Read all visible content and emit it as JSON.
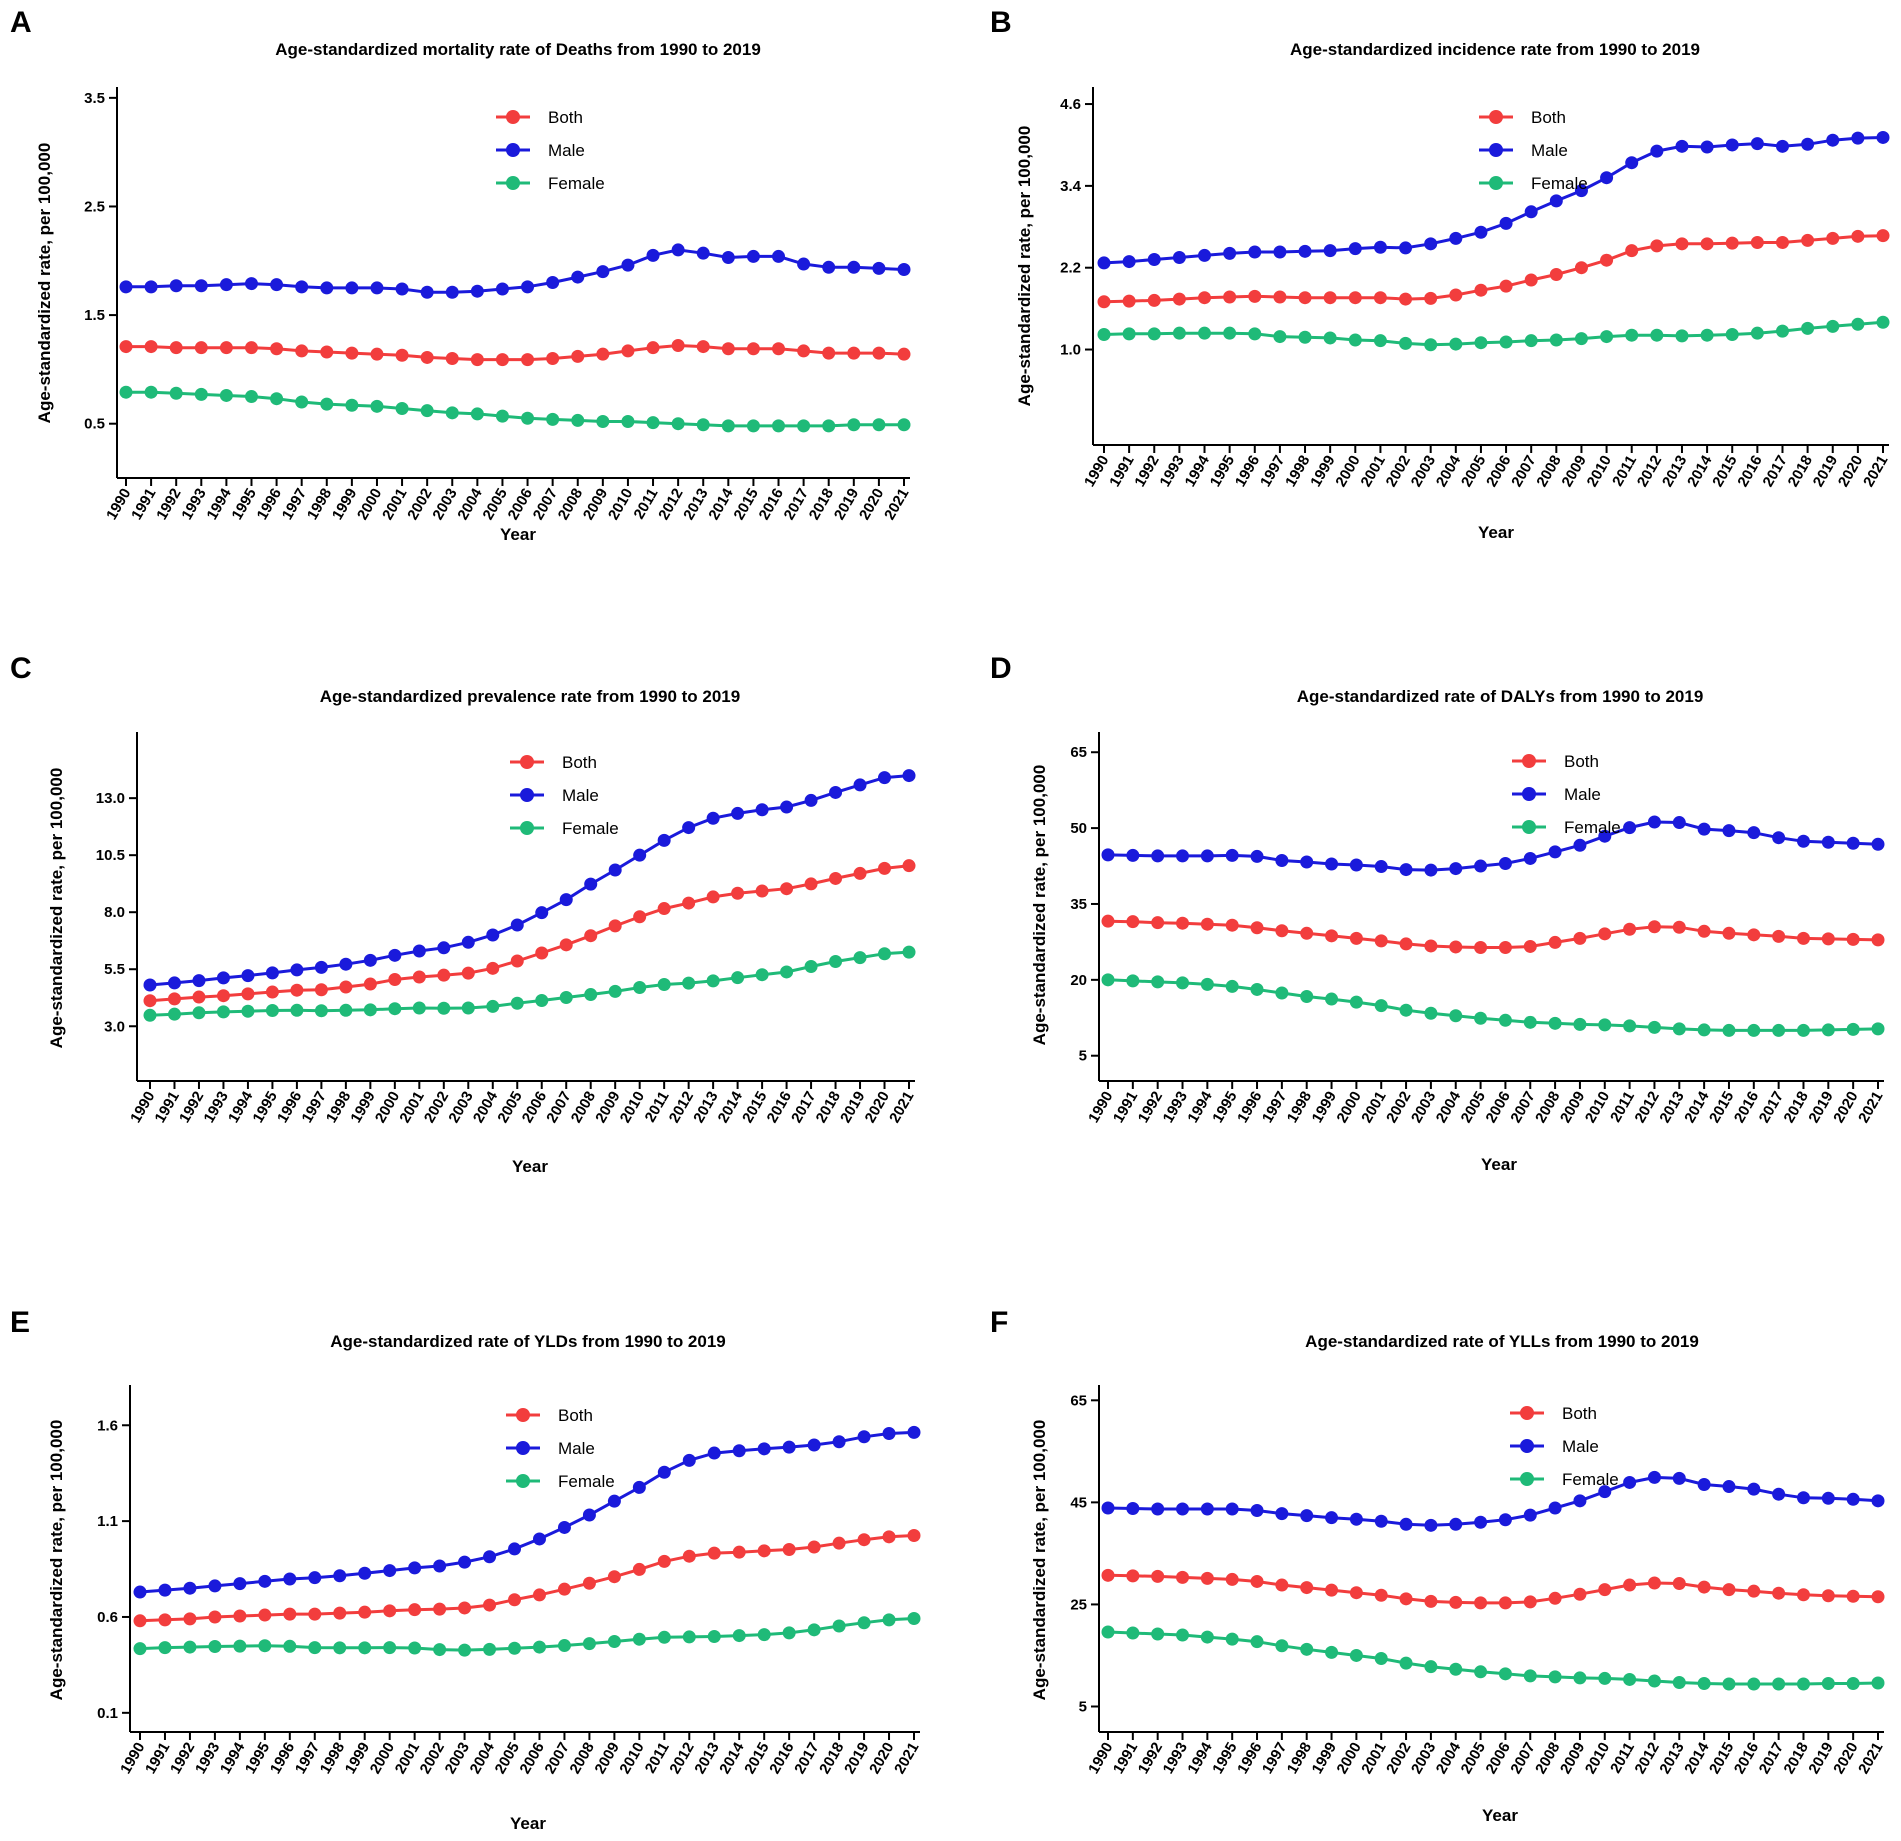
{
  "figure": {
    "years": [
      "1990",
      "1991",
      "1992",
      "1993",
      "1994",
      "1995",
      "1996",
      "1997",
      "1998",
      "1999",
      "2000",
      "2001",
      "2002",
      "2003",
      "2004",
      "2005",
      "2006",
      "2007",
      "2008",
      "2009",
      "2010",
      "2011",
      "2012",
      "2013",
      "2014",
      "2015",
      "2016",
      "2017",
      "2018",
      "2019",
      "2020",
      "2021"
    ]
  },
  "colors": {
    "Both": "#f23d3d",
    "Male": "#1a1adb",
    "Female": "#1fba78"
  },
  "chart_data": [
    {
      "panel": "A",
      "type": "line",
      "title": "Age-standardized mortality rate of Deaths from 1990 to 2019",
      "xlabel": "Year",
      "ylabel": "Age-standardized rate, per 100,000",
      "ylim": [
        0.0,
        3.6
      ],
      "yticks": [
        0.5,
        1.5,
        2.5,
        3.5
      ],
      "ytick_labels": [
        "0.5",
        "1.5",
        "2.5",
        "3.5"
      ],
      "legend": [
        "Both",
        "Male",
        "Female"
      ],
      "series": [
        {
          "name": "Both",
          "values": [
            1.21,
            1.21,
            1.2,
            1.2,
            1.2,
            1.2,
            1.19,
            1.17,
            1.16,
            1.15,
            1.14,
            1.13,
            1.11,
            1.1,
            1.09,
            1.09,
            1.09,
            1.1,
            1.12,
            1.14,
            1.17,
            1.2,
            1.22,
            1.21,
            1.19,
            1.19,
            1.19,
            1.17,
            1.15,
            1.15,
            1.15,
            1.14
          ]
        },
        {
          "name": "Male",
          "values": [
            1.76,
            1.76,
            1.77,
            1.77,
            1.78,
            1.79,
            1.78,
            1.76,
            1.75,
            1.75,
            1.75,
            1.74,
            1.71,
            1.71,
            1.72,
            1.74,
            1.76,
            1.8,
            1.85,
            1.9,
            1.96,
            2.05,
            2.1,
            2.07,
            2.03,
            2.04,
            2.04,
            1.97,
            1.94,
            1.94,
            1.93,
            1.92
          ]
        },
        {
          "name": "Female",
          "values": [
            0.79,
            0.79,
            0.78,
            0.77,
            0.76,
            0.75,
            0.73,
            0.7,
            0.68,
            0.67,
            0.66,
            0.64,
            0.62,
            0.6,
            0.59,
            0.57,
            0.55,
            0.54,
            0.53,
            0.52,
            0.52,
            0.51,
            0.5,
            0.49,
            0.48,
            0.48,
            0.48,
            0.48,
            0.48,
            0.49,
            0.49,
            0.49
          ]
        }
      ]
    },
    {
      "panel": "B",
      "type": "line",
      "title": "Age-standardized incidence rate  from 1990 to 2019",
      "xlabel": "Year",
      "ylabel": "Age-standardized rate, per 100,000",
      "ylim": [
        -0.4,
        4.85
      ],
      "yticks": [
        1.0,
        2.2,
        3.4,
        4.6
      ],
      "ytick_labels": [
        "1.0",
        "2.2",
        "3.4",
        "4.6"
      ],
      "legend": [
        "Both",
        "Male",
        "Female"
      ],
      "series": [
        {
          "name": "Both",
          "values": [
            1.7,
            1.71,
            1.72,
            1.74,
            1.76,
            1.77,
            1.78,
            1.77,
            1.76,
            1.76,
            1.76,
            1.76,
            1.74,
            1.75,
            1.8,
            1.87,
            1.93,
            2.02,
            2.1,
            2.2,
            2.31,
            2.45,
            2.52,
            2.55,
            2.55,
            2.56,
            2.57,
            2.57,
            2.6,
            2.63,
            2.66,
            2.67
          ]
        },
        {
          "name": "Male",
          "values": [
            2.27,
            2.29,
            2.32,
            2.35,
            2.38,
            2.41,
            2.43,
            2.43,
            2.44,
            2.45,
            2.48,
            2.5,
            2.49,
            2.55,
            2.63,
            2.72,
            2.85,
            3.02,
            3.18,
            3.33,
            3.52,
            3.74,
            3.91,
            3.98,
            3.97,
            4.0,
            4.02,
            3.98,
            4.01,
            4.07,
            4.1,
            4.11
          ]
        },
        {
          "name": "Female",
          "values": [
            1.22,
            1.23,
            1.23,
            1.24,
            1.24,
            1.24,
            1.23,
            1.19,
            1.18,
            1.17,
            1.14,
            1.13,
            1.09,
            1.07,
            1.08,
            1.1,
            1.11,
            1.13,
            1.14,
            1.16,
            1.19,
            1.21,
            1.21,
            1.2,
            1.21,
            1.22,
            1.24,
            1.27,
            1.31,
            1.34,
            1.37,
            1.4
          ]
        }
      ]
    },
    {
      "panel": "C",
      "type": "line",
      "title": "Age-standardized prevalence rate from 1990 to 2019",
      "xlabel": "Year",
      "ylabel": "Age-standardized rate, per 100,000",
      "ylim": [
        0.6,
        15.9
      ],
      "yticks": [
        3.0,
        5.5,
        8.0,
        10.5,
        13.0
      ],
      "ytick_labels": [
        "3.0",
        "5.5",
        "8.0",
        "10.5",
        "13.0"
      ],
      "legend": [
        "Both",
        "Male",
        "Female"
      ],
      "series": [
        {
          "name": "Both",
          "values": [
            4.12,
            4.2,
            4.28,
            4.34,
            4.42,
            4.5,
            4.58,
            4.6,
            4.72,
            4.85,
            5.05,
            5.16,
            5.24,
            5.33,
            5.54,
            5.86,
            6.21,
            6.57,
            6.97,
            7.4,
            7.8,
            8.16,
            8.4,
            8.67,
            8.83,
            8.93,
            9.03,
            9.24,
            9.48,
            9.7,
            9.92,
            10.04
          ]
        },
        {
          "name": "Male",
          "values": [
            4.81,
            4.9,
            5.0,
            5.12,
            5.22,
            5.34,
            5.47,
            5.58,
            5.72,
            5.89,
            6.11,
            6.3,
            6.44,
            6.68,
            7.0,
            7.44,
            7.98,
            8.55,
            9.23,
            9.85,
            10.5,
            11.15,
            11.71,
            12.12,
            12.33,
            12.49,
            12.61,
            12.9,
            13.25,
            13.58,
            13.9,
            13.99
          ]
        },
        {
          "name": "Female",
          "values": [
            3.48,
            3.53,
            3.59,
            3.63,
            3.66,
            3.69,
            3.7,
            3.68,
            3.7,
            3.72,
            3.77,
            3.8,
            3.79,
            3.8,
            3.87,
            4.01,
            4.13,
            4.26,
            4.39,
            4.53,
            4.7,
            4.83,
            4.89,
            4.99,
            5.13,
            5.26,
            5.38,
            5.62,
            5.84,
            6.01,
            6.18,
            6.25
          ]
        }
      ]
    },
    {
      "panel": "D",
      "type": "line",
      "title": "Age-standardized  rate of DALYs from 1990 to 2019",
      "xlabel": "Year",
      "ylabel": "Age-standardized rate, per 100,000",
      "ylim": [
        0,
        69
      ],
      "yticks": [
        5,
        20,
        35,
        50,
        65
      ],
      "ytick_labels": [
        "5",
        "20",
        "35",
        "50",
        "65"
      ],
      "legend": [
        "Both",
        "Male",
        "Female"
      ],
      "series": [
        {
          "name": "Both",
          "values": [
            31.6,
            31.5,
            31.3,
            31.2,
            31.0,
            30.8,
            30.3,
            29.7,
            29.2,
            28.7,
            28.2,
            27.7,
            27.1,
            26.7,
            26.5,
            26.4,
            26.4,
            26.6,
            27.4,
            28.2,
            29.1,
            30.0,
            30.5,
            30.4,
            29.6,
            29.2,
            28.9,
            28.6,
            28.2,
            28.1,
            28.0,
            27.9
          ]
        },
        {
          "name": "Male",
          "values": [
            44.7,
            44.6,
            44.5,
            44.5,
            44.5,
            44.6,
            44.4,
            43.6,
            43.3,
            42.9,
            42.7,
            42.4,
            41.8,
            41.7,
            42.0,
            42.5,
            43.0,
            44.0,
            45.3,
            46.6,
            48.4,
            50.1,
            51.2,
            51.1,
            49.8,
            49.5,
            49.1,
            48.1,
            47.4,
            47.2,
            47.0,
            46.8
          ]
        },
        {
          "name": "Female",
          "values": [
            20.0,
            19.8,
            19.6,
            19.4,
            19.1,
            18.7,
            18.1,
            17.4,
            16.7,
            16.2,
            15.6,
            14.9,
            14.0,
            13.4,
            12.9,
            12.4,
            12.0,
            11.6,
            11.4,
            11.2,
            11.1,
            10.9,
            10.6,
            10.3,
            10.1,
            10.0,
            10.0,
            10.0,
            10.0,
            10.1,
            10.2,
            10.3
          ]
        }
      ]
    },
    {
      "panel": "E",
      "type": "line",
      "title": "Age-standardized  rate of YLDs from 1990 to 2019",
      "xlabel": "Year",
      "ylabel": "Age-standardized rate, per 100,000",
      "ylim": [
        0.0,
        1.81
      ],
      "yticks": [
        0.1,
        0.6,
        1.1,
        1.6
      ],
      "ytick_labels": [
        "0.1",
        "0.6",
        "1.1",
        "1.6"
      ],
      "legend": [
        "Both",
        "Male",
        "Female"
      ],
      "series": [
        {
          "name": "Both",
          "values": [
            0.58,
            0.585,
            0.59,
            0.6,
            0.605,
            0.61,
            0.615,
            0.615,
            0.62,
            0.625,
            0.632,
            0.638,
            0.641,
            0.647,
            0.662,
            0.69,
            0.715,
            0.745,
            0.776,
            0.81,
            0.848,
            0.89,
            0.917,
            0.933,
            0.938,
            0.945,
            0.952,
            0.965,
            0.985,
            1.003,
            1.018,
            1.025
          ]
        },
        {
          "name": "Male",
          "values": [
            0.73,
            0.74,
            0.75,
            0.762,
            0.774,
            0.786,
            0.798,
            0.805,
            0.815,
            0.828,
            0.842,
            0.856,
            0.866,
            0.886,
            0.914,
            0.955,
            1.007,
            1.067,
            1.132,
            1.204,
            1.276,
            1.355,
            1.417,
            1.455,
            1.467,
            1.477,
            1.486,
            1.497,
            1.514,
            1.54,
            1.557,
            1.563
          ]
        },
        {
          "name": "Female",
          "values": [
            0.435,
            0.44,
            0.443,
            0.446,
            0.448,
            0.45,
            0.447,
            0.44,
            0.439,
            0.439,
            0.44,
            0.438,
            0.43,
            0.427,
            0.431,
            0.437,
            0.443,
            0.451,
            0.461,
            0.472,
            0.484,
            0.494,
            0.496,
            0.498,
            0.503,
            0.508,
            0.517,
            0.533,
            0.553,
            0.57,
            0.585,
            0.592
          ]
        }
      ]
    },
    {
      "panel": "F",
      "type": "line",
      "title": "Age-standardized  rate of YLLs from 1990 to 2019",
      "xlabel": "Year",
      "ylabel": "Age-standardized rate, per 100,000",
      "ylim": [
        0,
        68
      ],
      "yticks": [
        5,
        25,
        45,
        65
      ],
      "ytick_labels": [
        "5",
        "25",
        "45",
        "65"
      ],
      "legend": [
        "Both",
        "Male",
        "Female"
      ],
      "series": [
        {
          "name": "Both",
          "values": [
            30.7,
            30.6,
            30.5,
            30.3,
            30.1,
            29.9,
            29.5,
            28.8,
            28.3,
            27.8,
            27.3,
            26.8,
            26.1,
            25.6,
            25.4,
            25.3,
            25.3,
            25.5,
            26.2,
            27.0,
            27.9,
            28.8,
            29.2,
            29.1,
            28.4,
            27.9,
            27.6,
            27.2,
            26.9,
            26.7,
            26.6,
            26.5
          ]
        },
        {
          "name": "Male",
          "values": [
            43.9,
            43.8,
            43.7,
            43.7,
            43.7,
            43.7,
            43.4,
            42.8,
            42.4,
            42.0,
            41.7,
            41.3,
            40.7,
            40.5,
            40.7,
            41.1,
            41.6,
            42.5,
            43.9,
            45.3,
            47.1,
            48.9,
            49.9,
            49.7,
            48.5,
            48.1,
            47.6,
            46.6,
            45.9,
            45.8,
            45.6,
            45.3
          ]
        },
        {
          "name": "Female",
          "values": [
            19.6,
            19.4,
            19.2,
            19.0,
            18.6,
            18.2,
            17.7,
            16.9,
            16.2,
            15.6,
            15.0,
            14.4,
            13.5,
            12.8,
            12.3,
            11.8,
            11.4,
            11.0,
            10.8,
            10.6,
            10.5,
            10.3,
            10.0,
            9.7,
            9.5,
            9.4,
            9.4,
            9.4,
            9.4,
            9.5,
            9.5,
            9.6
          ]
        }
      ]
    }
  ]
}
